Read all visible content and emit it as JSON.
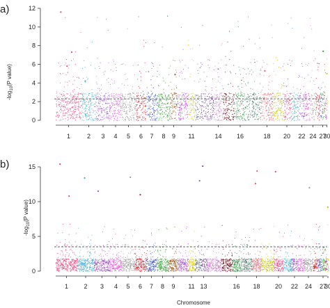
{
  "chart_data": [
    {
      "type": "scatter",
      "panel_label": "a)",
      "ylabel": "-log10(P value)",
      "ylabel_main": "-log",
      "ylabel_sub": "10",
      "ylabel_rest": "(P value)",
      "xlabel": "",
      "ylim": [
        0,
        12
      ],
      "yticks": [
        0,
        2,
        4,
        6,
        8,
        10,
        12
      ],
      "threshold": 2.3,
      "xticks": [
        "1",
        "2",
        "3",
        "4",
        "5",
        "6",
        "7",
        "8",
        "9",
        "11",
        "14",
        "16",
        "18",
        "20",
        "22",
        "24",
        "27",
        "30"
      ],
      "notable_points": [
        {
          "chromosome": "1",
          "value": 11.6
        },
        {
          "chromosome": "1",
          "value": 7.3
        },
        {
          "chromosome": "1",
          "value": 5.8
        },
        {
          "chromosome": "2",
          "value": 4.2
        },
        {
          "chromosome": "9",
          "value": 4.9
        },
        {
          "chromosome": "14",
          "value": 5.5
        },
        {
          "chromosome": "18",
          "value": 5.3
        },
        {
          "chromosome": "27",
          "value": 7.4
        },
        {
          "chromosome": "30",
          "value": 5.0
        }
      ]
    },
    {
      "type": "scatter",
      "panel_label": "b)",
      "ylabel": "-log10(P value)",
      "ylabel_main": "-log",
      "ylabel_sub": "10",
      "ylabel_rest": "(P value)",
      "xlabel": "Chromosome",
      "ylim": [
        0,
        15.5
      ],
      "yticks": [
        0,
        5,
        10,
        15
      ],
      "threshold": 3.5,
      "xticks": [
        "1",
        "2",
        "3",
        "4",
        "5",
        "6",
        "7",
        "8",
        "9",
        "11",
        "13",
        "16",
        "18",
        "20",
        "22",
        "24",
        "27",
        "30"
      ],
      "notable_points": [
        {
          "chromosome": "1",
          "value": 15.4
        },
        {
          "chromosome": "1",
          "value": 10.8
        },
        {
          "chromosome": "2",
          "value": 13.4
        },
        {
          "chromosome": "3",
          "value": 11.5
        },
        {
          "chromosome": "5",
          "value": 13.5
        },
        {
          "chromosome": "6",
          "value": 11.0
        },
        {
          "chromosome": "13",
          "value": 15.1
        },
        {
          "chromosome": "12",
          "value": 13.0
        },
        {
          "chromosome": "18",
          "value": 14.4
        },
        {
          "chromosome": "18",
          "value": 12.6
        },
        {
          "chromosome": "20",
          "value": 14.3
        },
        {
          "chromosome": "24",
          "value": 12.0
        },
        {
          "chromosome": "30",
          "value": 9.2
        }
      ]
    }
  ],
  "colors": {
    "palette": [
      "#e8417a",
      "#3fa9c9",
      "#9e52c9",
      "#e056d9",
      "#9a9a9a",
      "#d11e2a",
      "#3b4fc4",
      "#2f9a2f",
      "#9a5a1e",
      "#b040e0",
      "#d4c400",
      "#6b7a8a",
      "#7a4a9a",
      "#c878c8",
      "#6a0a14",
      "#2a8a3a",
      "#4a7a6a",
      "#e85a6a",
      "#c4c400"
    ],
    "threshold": "#666666",
    "axis": "#333333"
  }
}
